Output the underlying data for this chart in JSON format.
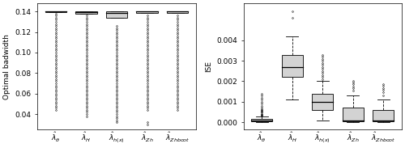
{
  "left_plot": {
    "ylabel": "Optimal badwidth",
    "ylim": [
      0.025,
      0.148
    ],
    "yticks": [
      0.04,
      0.06,
      0.08,
      0.1,
      0.12,
      0.14
    ],
    "xlabels": [
      "$\\hat{\\lambda}_{\\theta}$",
      "$\\hat{\\lambda}_{H}$",
      "$\\hat{\\lambda}_{h(x)}$",
      "$\\hat{\\lambda}_{Zh}$",
      "$\\hat{\\lambda}_{Zhboot}$"
    ],
    "boxes": [
      {
        "q1": 0.1395,
        "median": 0.14,
        "q3": 0.1405,
        "whislo": 0.1395,
        "whishi": 0.1405,
        "fliers": [
          0.044,
          0.046,
          0.048,
          0.05,
          0.052,
          0.054,
          0.056,
          0.058,
          0.06,
          0.062,
          0.064,
          0.066,
          0.068,
          0.07,
          0.072,
          0.074,
          0.076,
          0.078,
          0.08,
          0.082,
          0.084,
          0.086,
          0.088,
          0.09,
          0.092,
          0.094,
          0.096,
          0.098,
          0.1,
          0.102,
          0.104,
          0.106,
          0.108,
          0.11,
          0.112,
          0.114,
          0.116,
          0.118,
          0.12,
          0.122,
          0.124,
          0.126,
          0.128,
          0.13,
          0.132,
          0.134,
          0.136,
          0.138
        ]
      },
      {
        "q1": 0.138,
        "median": 0.1395,
        "q3": 0.1405,
        "whislo": 0.138,
        "whishi": 0.1405,
        "fliers": [
          0.038,
          0.04,
          0.042,
          0.044,
          0.046,
          0.048,
          0.05,
          0.052,
          0.054,
          0.056,
          0.058,
          0.06,
          0.062,
          0.064,
          0.066,
          0.068,
          0.07,
          0.072,
          0.074,
          0.076,
          0.078,
          0.08,
          0.082,
          0.084,
          0.086,
          0.088,
          0.09,
          0.092,
          0.094,
          0.096,
          0.098,
          0.1,
          0.102,
          0.104,
          0.106,
          0.108,
          0.11,
          0.112,
          0.114,
          0.116,
          0.118,
          0.12,
          0.122,
          0.124,
          0.126,
          0.128,
          0.13,
          0.132,
          0.134,
          0.136
        ]
      },
      {
        "q1": 0.134,
        "median": 0.1385,
        "q3": 0.1405,
        "whislo": 0.134,
        "whishi": 0.1405,
        "fliers": [
          0.032,
          0.034,
          0.036,
          0.038,
          0.04,
          0.042,
          0.044,
          0.046,
          0.048,
          0.05,
          0.052,
          0.054,
          0.056,
          0.058,
          0.06,
          0.062,
          0.064,
          0.066,
          0.068,
          0.07,
          0.072,
          0.074,
          0.076,
          0.078,
          0.08,
          0.082,
          0.084,
          0.086,
          0.088,
          0.09,
          0.092,
          0.094,
          0.096,
          0.098,
          0.1,
          0.102,
          0.104,
          0.106,
          0.108,
          0.11,
          0.112,
          0.114,
          0.116,
          0.118,
          0.12,
          0.122,
          0.124,
          0.126
        ]
      },
      {
        "q1": 0.139,
        "median": 0.14,
        "q3": 0.1405,
        "whislo": 0.139,
        "whishi": 0.1405,
        "fliers": [
          0.03,
          0.032,
          0.044,
          0.046,
          0.048,
          0.05,
          0.052,
          0.054,
          0.056,
          0.058,
          0.06,
          0.062,
          0.064,
          0.066,
          0.068,
          0.07,
          0.072,
          0.074,
          0.076,
          0.078,
          0.08,
          0.082,
          0.084,
          0.086,
          0.088,
          0.09,
          0.092,
          0.094,
          0.096,
          0.098,
          0.1,
          0.102,
          0.104,
          0.106,
          0.108,
          0.11,
          0.112,
          0.114,
          0.116,
          0.118,
          0.12,
          0.122,
          0.124,
          0.126,
          0.128,
          0.13,
          0.132,
          0.134,
          0.136
        ]
      },
      {
        "q1": 0.139,
        "median": 0.14,
        "q3": 0.1405,
        "whislo": 0.139,
        "whishi": 0.1405,
        "fliers": [
          0.044,
          0.046,
          0.048,
          0.05,
          0.052,
          0.054,
          0.056,
          0.058,
          0.06,
          0.062,
          0.064,
          0.066,
          0.068,
          0.07,
          0.072,
          0.074,
          0.076,
          0.078,
          0.08,
          0.082,
          0.084,
          0.086,
          0.088,
          0.09,
          0.092,
          0.094,
          0.096,
          0.098,
          0.1,
          0.102,
          0.104,
          0.106,
          0.108,
          0.11,
          0.112,
          0.114,
          0.116,
          0.118,
          0.12,
          0.122,
          0.124,
          0.126,
          0.128,
          0.13,
          0.132,
          0.134,
          0.136
        ]
      }
    ]
  },
  "right_plot": {
    "ylabel": "ISE",
    "ylim": [
      -0.00035,
      0.0058
    ],
    "yticks": [
      0.0,
      0.001,
      0.002,
      0.003,
      0.004
    ],
    "xlabels": [
      "$\\hat{\\lambda}_{\\theta}$",
      "$\\hat{\\lambda}_{H}$",
      "$\\hat{\\lambda}_{h(x)}$",
      "$\\hat{\\lambda}_{Zh}$",
      "$\\hat{\\lambda}_{Zhboot}$"
    ],
    "boxes": [
      {
        "q1": 3e-05,
        "median": 7e-05,
        "q3": 0.00015,
        "whislo": 5e-06,
        "whishi": 0.00028,
        "fliers": [
          0.00032,
          0.00035,
          0.00038,
          0.00042,
          0.00046,
          0.0005,
          0.00055,
          0.0006,
          0.00065,
          0.0007,
          0.0008,
          0.0009,
          0.001,
          0.0011,
          0.0012,
          0.0013,
          0.0014
        ]
      },
      {
        "q1": 0.0022,
        "median": 0.0027,
        "q3": 0.0033,
        "whislo": 0.0011,
        "whishi": 0.0042,
        "fliers": [
          0.0051,
          0.0054
        ]
      },
      {
        "q1": 0.0006,
        "median": 0.001,
        "q3": 0.0014,
        "whislo": 0.0001,
        "whishi": 0.002,
        "fliers": [
          0.0021,
          0.0022,
          0.0023,
          0.0024,
          0.0025,
          0.0026,
          0.0027,
          0.0028,
          0.0029,
          0.003,
          0.0031,
          0.0032,
          0.0033
        ]
      },
      {
        "q1": 4e-05,
        "median": 0.0001,
        "q3": 0.0007,
        "whislo": 5e-06,
        "whishi": 0.0013,
        "fliers": [
          0.00155,
          0.00165,
          0.00175,
          0.00185,
          0.00195,
          0.002
        ]
      },
      {
        "q1": 4e-05,
        "median": 9e-05,
        "q3": 0.0006,
        "whislo": 5e-06,
        "whishi": 0.0011,
        "fliers": [
          0.0013,
          0.00145,
          0.00158,
          0.00168,
          0.00178,
          0.00185
        ]
      }
    ]
  },
  "box_facecolor": "#d3d3d3",
  "box_edgecolor": "black",
  "median_color": "black",
  "whisker_color": "black",
  "flier_marker": "o",
  "flier_size": 1.2,
  "flier_edgewidth": 0.4,
  "background_color": "white",
  "font_size": 6.5,
  "linewidth": 0.6
}
